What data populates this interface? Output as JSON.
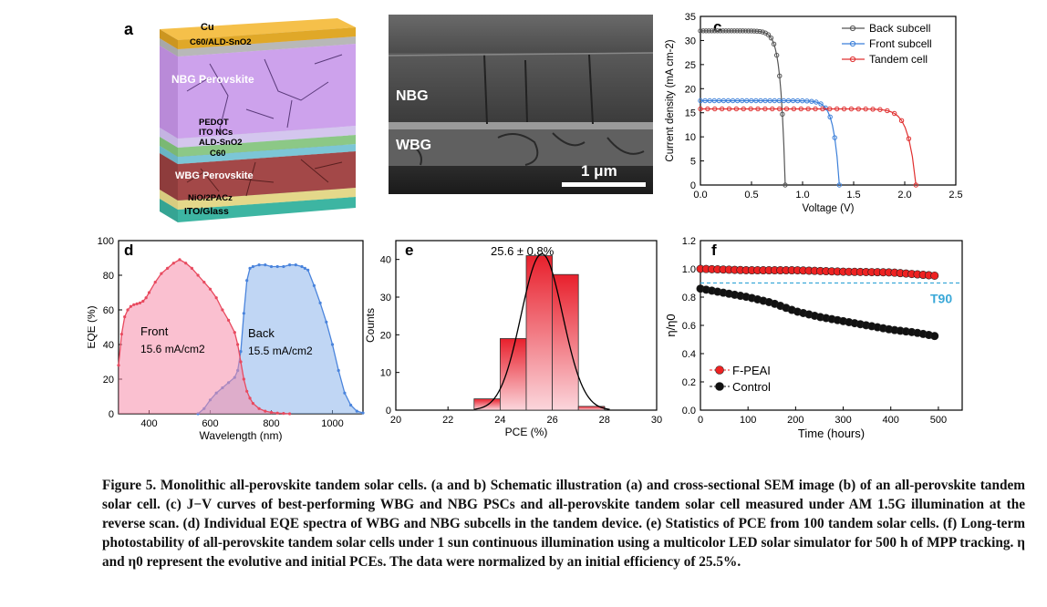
{
  "panel_a": {
    "label": "a",
    "layers": {
      "cu": "Cu",
      "c60_ald": "C60/ALD-SnO2",
      "nbg": "NBG Perovskite",
      "pedot": "PEDOT",
      "ito_ncs": "ITO NCs",
      "ald": "ALD-SnO2",
      "c60": "C60",
      "wbg": "WBG Perovskite",
      "nio": "NiO/2PACz",
      "ito_glass": "ITO/Glass"
    }
  },
  "panel_b": {
    "label": "b",
    "nbg": "NBG",
    "wbg": "WBG",
    "scale": "1 μm"
  },
  "colors": {
    "back": "#555555",
    "front": "#3b7fd9",
    "tandem": "#e03030",
    "control": "#111111",
    "fpeai": "#ee2222",
    "t90": "#3aa8d8"
  },
  "chart_data": [
    {
      "panel": "c",
      "type": "line",
      "xlabel": "Voltage (V)",
      "ylabel": "Current density (mA cm-2)",
      "xlim": [
        0,
        2.5
      ],
      "ylim": [
        0,
        35
      ],
      "xticks": [
        "0.0",
        "0.5",
        "1.0",
        "1.5",
        "2.0",
        "2.5"
      ],
      "yticks": [
        "0",
        "5",
        "10",
        "15",
        "20",
        "25",
        "30",
        "35"
      ],
      "legend_position": "top-right",
      "series": [
        {
          "name": "Back subcell",
          "jsc": 32.0,
          "voc": 0.83,
          "n": 0.045
        },
        {
          "name": "Front subcell",
          "jsc": 17.5,
          "voc": 1.36,
          "n": 0.055
        },
        {
          "name": "Tandem cell",
          "jsc": 15.8,
          "voc": 2.11,
          "n": 0.075
        }
      ]
    },
    {
      "panel": "d",
      "type": "area",
      "xlabel": "Wavelength (nm)",
      "ylabel": "EQE (%)",
      "xlim": [
        300,
        1100
      ],
      "ylim": [
        0,
        100
      ],
      "xticks": [
        "400",
        "600",
        "800",
        "1000"
      ],
      "yticks": [
        "0",
        "20",
        "40",
        "60",
        "80",
        "100"
      ],
      "series": [
        {
          "name": "Front",
          "label": "15.6 mA/cm2",
          "x": [
            300,
            310,
            320,
            330,
            340,
            350,
            360,
            370,
            380,
            390,
            400,
            420,
            440,
            460,
            480,
            500,
            520,
            540,
            560,
            580,
            600,
            620,
            640,
            660,
            680,
            690,
            700,
            710,
            720,
            730,
            740,
            760,
            780,
            800,
            820,
            840,
            860
          ],
          "y": [
            28,
            46,
            56,
            60,
            62,
            63,
            63.5,
            64,
            65,
            67,
            70,
            76,
            81,
            84,
            87,
            89,
            87,
            84,
            80,
            76,
            72,
            67,
            60,
            54,
            47,
            40,
            30,
            20,
            13,
            9,
            6,
            3,
            1.5,
            0.8,
            0.4,
            0.2,
            0
          ]
        },
        {
          "name": "Back",
          "label": "15.5 mA/cm2",
          "x": [
            560,
            580,
            600,
            620,
            640,
            660,
            680,
            690,
            700,
            710,
            720,
            730,
            740,
            760,
            780,
            800,
            820,
            840,
            860,
            880,
            900,
            910,
            920,
            940,
            960,
            980,
            1000,
            1020,
            1040,
            1060,
            1080,
            1100
          ],
          "y": [
            0,
            3,
            8,
            12,
            15,
            18,
            21,
            25,
            36,
            58,
            77,
            84,
            85,
            86,
            86,
            85,
            85,
            85,
            86,
            86,
            85,
            84,
            83,
            74,
            64,
            53,
            40,
            25,
            12,
            5,
            1.5,
            0.5
          ]
        }
      ]
    },
    {
      "panel": "e",
      "type": "bar",
      "xlabel": "PCE (%)",
      "ylabel": "Counts",
      "annotation": "25.6 ± 0.8%",
      "xlim": [
        20,
        30
      ],
      "ylim": [
        0,
        45
      ],
      "xticks": [
        "20",
        "22",
        "24",
        "26",
        "28",
        "30"
      ],
      "yticks": [
        "0",
        "10",
        "20",
        "30",
        "40"
      ],
      "bin_start": [
        23,
        24,
        25,
        26,
        27
      ],
      "bin_width": 1,
      "values": [
        3,
        19,
        41,
        36,
        1
      ],
      "fit": {
        "mean": 25.6,
        "sigma": 0.8,
        "peak": 41.5
      }
    },
    {
      "panel": "f",
      "type": "scatter",
      "xlabel": "Time (hours)",
      "ylabel": "η/η0",
      "xlim": [
        0,
        550
      ],
      "ylim": [
        0,
        1.2
      ],
      "xticks": [
        "0",
        "100",
        "200",
        "300",
        "400",
        "500"
      ],
      "yticks": [
        "0.0",
        "0.2",
        "0.4",
        "0.6",
        "0.8",
        "1.0",
        "1.2"
      ],
      "t90_label": "T90",
      "t90_value": 0.9,
      "legend_position": "bottom-left",
      "series": [
        {
          "name": "F-PEAI",
          "x": [
            0,
            100,
            200,
            300,
            400,
            500
          ],
          "y": [
            1.0,
            0.99,
            0.99,
            0.98,
            0.975,
            0.95
          ]
        },
        {
          "name": "Control",
          "x": [
            0,
            50,
            100,
            150,
            200,
            250,
            300,
            350,
            400,
            450,
            500
          ],
          "y": [
            0.86,
            0.83,
            0.8,
            0.76,
            0.7,
            0.66,
            0.63,
            0.6,
            0.57,
            0.55,
            0.52
          ]
        }
      ]
    }
  ],
  "caption": {
    "lead": "Figure 5. Monolithic all-perovskite tandem solar cells.",
    "body": "(a and b) Schematic illustration (a) and cross-sectional SEM image (b) of an all-perovskite tandem solar cell. (c) J−V curves of best-performing WBG and NBG PSCs and all-perovskite tandem solar cell measured under AM 1.5G illumination at the reverse scan. (d) Individual EQE spectra of WBG and NBG subcells in the tandem device. (e) Statistics of PCE from 100 tandem solar cells. (f) Long-term photostability of all-perovskite tandem solar cells under 1 sun continuous illumination using a multicolor LED solar simulator for 500 h of MPP tracking. η and η0 represent the evolutive and initial PCEs. The data were normalized by an initial efficiency of 25.5%."
  }
}
